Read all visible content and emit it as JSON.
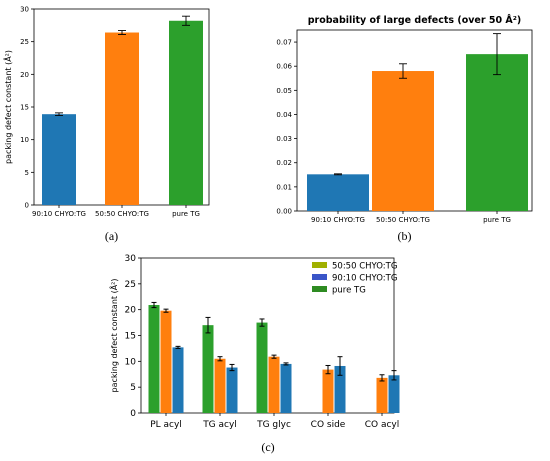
{
  "chart_data": [
    {
      "type": "bar",
      "panel_label": "(a)",
      "title": "",
      "xlabel": "",
      "ylabel": "packing defect constant (Å²)",
      "categories": [
        "90:10 CHYO:TG",
        "50:50 CHYO:TG",
        "pure TG"
      ],
      "values": [
        13.9,
        26.4,
        28.2
      ],
      "errors": [
        0.2,
        0.3,
        0.7
      ],
      "colors": [
        "#1f77b4",
        "#ff7f0e",
        "#2ca02c"
      ],
      "ylim": [
        0,
        30
      ],
      "yticks": [
        0,
        5,
        10,
        15,
        20,
        25,
        30
      ],
      "grid": false
    },
    {
      "type": "bar",
      "panel_label": "(b)",
      "title": "probability of large defects (over 50 Å²)",
      "xlabel": "",
      "ylabel": "",
      "categories": [
        "90:10 CHYO:TG",
        "50:50 CHYO:TG",
        "pure TG"
      ],
      "values": [
        0.0152,
        0.058,
        0.065
      ],
      "errors": [
        0.0002,
        0.003,
        0.0085
      ],
      "colors": [
        "#1f77b4",
        "#ff7f0e",
        "#2ca02c"
      ],
      "ylim": [
        0,
        0.075
      ],
      "yticks": [
        "0.00",
        "0.01",
        "0.02",
        "0.03",
        "0.04",
        "0.05",
        "0.06",
        "0.07"
      ],
      "grid": false
    },
    {
      "type": "bar",
      "panel_label": "(c)",
      "title": "",
      "xlabel": "",
      "ylabel": "packing defect constant (Å²)",
      "categories": [
        "PL acyl",
        "TG acyl",
        "TG glyc",
        "CO side",
        "CO acyl"
      ],
      "legend_position": "top-right",
      "legend": [
        {
          "name": "50:50 CHYO:TG",
          "color": "#a0b000"
        },
        {
          "name": "90:10 CHYO:TG",
          "color": "#3a55c8"
        },
        {
          "name": "pure TG",
          "color": "#2e8b22"
        }
      ],
      "series": [
        {
          "key": "pure TG",
          "color": "#2ca02c",
          "values": [
            20.9,
            17.0,
            17.5,
            null,
            null
          ],
          "errors": [
            0.5,
            1.5,
            0.7,
            null,
            null
          ]
        },
        {
          "key": "50:50 CHYO:TG",
          "color": "#ff7f0e",
          "values": [
            19.8,
            10.5,
            10.9,
            8.4,
            6.8
          ],
          "errors": [
            0.3,
            0.4,
            0.3,
            0.8,
            0.6
          ]
        },
        {
          "key": "90:10 CHYO:TG",
          "color": "#1f77b4",
          "values": [
            12.7,
            8.8,
            9.5,
            9.1,
            7.3
          ],
          "errors": [
            0.2,
            0.6,
            0.2,
            1.8,
            0.9
          ]
        }
      ],
      "ylim": [
        0,
        30
      ],
      "yticks": [
        0,
        5,
        10,
        15,
        20,
        25,
        30
      ],
      "grid": false
    }
  ]
}
